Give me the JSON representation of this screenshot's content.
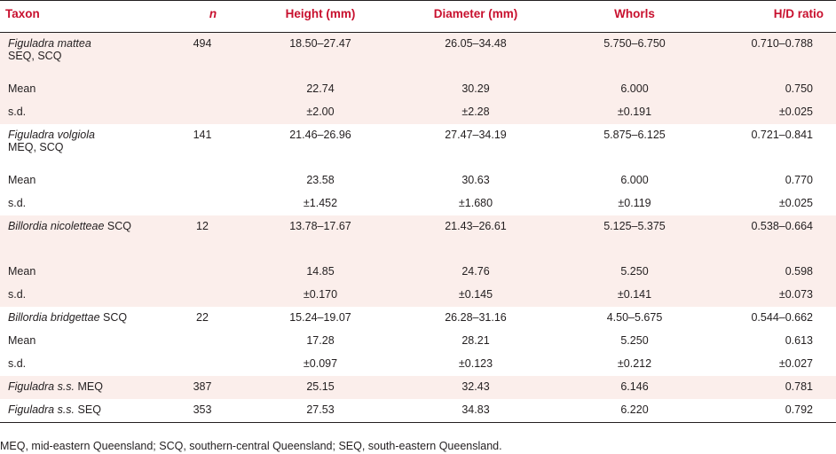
{
  "header": {
    "taxon": "Taxon",
    "n": "n",
    "height": "Height (mm)",
    "diameter": "Diameter (mm)",
    "whorls": "Whorls",
    "hd_ratio": "H/D ratio"
  },
  "rows": [
    {
      "taxon_italic": "Figuladra mattea",
      "taxon_plain": "SEQ, SCQ",
      "n": "494",
      "height": "18.50–27.47",
      "diameter": "26.05–34.48",
      "whorls": "5.750–6.750",
      "hd": "0.710–0.788"
    },
    {
      "label": "Mean",
      "height": "22.74",
      "diameter": "30.29",
      "whorls": "6.000",
      "hd": "0.750"
    },
    {
      "label": "s.d.",
      "height": "±2.00",
      "diameter": "±2.28",
      "whorls": "±0.191",
      "hd": "±0.025"
    },
    {
      "taxon_italic": "Figuladra volgiola",
      "taxon_plain": "MEQ, SCQ",
      "n": "141",
      "height": "21.46–26.96",
      "diameter": "27.47–34.19",
      "whorls": "5.875–6.125",
      "hd": "0.721–0.841"
    },
    {
      "label": "Mean",
      "height": "23.58",
      "diameter": "30.63",
      "whorls": "6.000",
      "hd": "0.770"
    },
    {
      "label": "s.d.",
      "height": "±1.452",
      "diameter": "±1.680",
      "whorls": "±0.119",
      "hd": "±0.025"
    },
    {
      "taxon_italic": "Billordia nicoletteae",
      "taxon_plain": "SCQ",
      "n": "12",
      "height": "13.78–17.67",
      "diameter": "21.43–26.61",
      "whorls": "5.125–5.375",
      "hd": "0.538–0.664"
    },
    {
      "label": "Mean",
      "height": "14.85",
      "diameter": "24.76",
      "whorls": "5.250",
      "hd": "0.598"
    },
    {
      "label": "s.d.",
      "height": "±0.170",
      "diameter": "±0.145",
      "whorls": "±0.141",
      "hd": "±0.073"
    },
    {
      "taxon_italic": "Billordia bridgettae",
      "taxon_plain": "SCQ",
      "n": "22",
      "height": "15.24–19.07",
      "diameter": "26.28–31.16",
      "whorls": "4.50–5.675",
      "hd": "0.544–0.662"
    },
    {
      "label": "Mean",
      "height": "17.28",
      "diameter": "28.21",
      "whorls": "5.250",
      "hd": "0.613"
    },
    {
      "label": "s.d.",
      "height": "±0.097",
      "diameter": "±0.123",
      "whorls": "±0.212",
      "hd": "±0.027"
    },
    {
      "taxon_italic": "Figuladra s.s.",
      "taxon_plain": "MEQ",
      "n": "387",
      "height": "25.15",
      "diameter": "32.43",
      "whorls": "6.146",
      "hd": "0.781"
    },
    {
      "taxon_italic": "Figuladra s.s.",
      "taxon_plain": "SEQ",
      "n": "353",
      "height": "27.53",
      "diameter": "34.83",
      "whorls": "6.220",
      "hd": "0.792"
    }
  ],
  "footnote": "MEQ, mid-eastern Queensland; SCQ, southern-central Queensland; SEQ, south-eastern Queensland."
}
